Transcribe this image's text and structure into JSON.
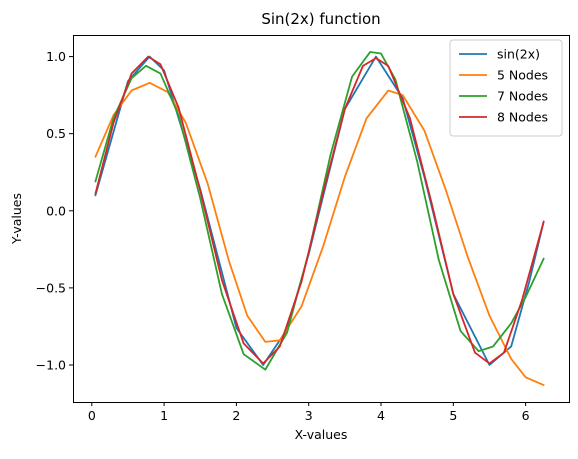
{
  "chart_data": {
    "type": "line",
    "title": "Sin(2x) function",
    "xlabel": "X-values",
    "ylabel": "Y-values",
    "xlim": [
      -0.26,
      6.6
    ],
    "ylim": [
      -1.24,
      1.14
    ],
    "xticks": [
      0,
      1,
      2,
      3,
      4,
      5,
      6
    ],
    "xtick_labels": [
      "0",
      "1",
      "2",
      "3",
      "4",
      "5",
      "6"
    ],
    "yticks": [
      -1.0,
      -0.5,
      0.0,
      0.5,
      1.0
    ],
    "ytick_labels": [
      "−1.0",
      "−0.5",
      "0.0",
      "0.5",
      "1.0"
    ],
    "grid": false,
    "legend": "top-right",
    "series": [
      {
        "name": "sin(2x)",
        "color": "#1f77b4",
        "x": [
          0.05,
          0.5,
          0.8,
          1.0,
          1.5,
          2.0,
          2.37,
          2.7,
          3.0,
          3.5,
          3.93,
          4.3,
          4.6,
          5.0,
          5.5,
          5.8,
          6.05,
          6.25
        ],
        "y": [
          0.1,
          0.84,
          1.0,
          0.91,
          0.14,
          -0.76,
          -1.0,
          -0.77,
          -0.28,
          0.66,
          1.0,
          0.73,
          0.22,
          -0.54,
          -1.0,
          -0.88,
          -0.46,
          -0.07
        ]
      },
      {
        "name": "5 Nodes",
        "color": "#ff7f0e",
        "x": [
          0.05,
          0.3,
          0.55,
          0.8,
          1.05,
          1.3,
          1.6,
          1.9,
          2.15,
          2.4,
          2.6,
          2.9,
          3.2,
          3.5,
          3.8,
          4.1,
          4.3,
          4.6,
          4.9,
          5.2,
          5.5,
          5.8,
          6.0,
          6.25
        ],
        "y": [
          0.35,
          0.62,
          0.78,
          0.83,
          0.77,
          0.57,
          0.18,
          -0.33,
          -0.68,
          -0.85,
          -0.84,
          -0.62,
          -0.23,
          0.22,
          0.6,
          0.78,
          0.75,
          0.52,
          0.13,
          -0.3,
          -0.68,
          -0.96,
          -1.08,
          -1.13
        ]
      },
      {
        "name": "7 Nodes",
        "color": "#2ca02c",
        "x": [
          0.05,
          0.3,
          0.55,
          0.75,
          0.95,
          1.2,
          1.5,
          1.8,
          2.1,
          2.4,
          2.7,
          3.0,
          3.3,
          3.6,
          3.85,
          4.0,
          4.2,
          4.5,
          4.8,
          5.1,
          5.35,
          5.55,
          5.8,
          6.0,
          6.25
        ],
        "y": [
          0.19,
          0.6,
          0.86,
          0.94,
          0.89,
          0.62,
          0.08,
          -0.54,
          -0.93,
          -1.03,
          -0.79,
          -0.27,
          0.36,
          0.87,
          1.03,
          1.02,
          0.85,
          0.32,
          -0.32,
          -0.78,
          -0.91,
          -0.88,
          -0.73,
          -0.56,
          -0.31
        ]
      },
      {
        "name": "8 Nodes",
        "color": "#d62728",
        "x": [
          0.05,
          0.3,
          0.55,
          0.78,
          0.95,
          1.2,
          1.5,
          1.8,
          2.1,
          2.37,
          2.6,
          2.9,
          3.2,
          3.5,
          3.75,
          3.93,
          4.1,
          4.4,
          4.7,
          5.0,
          5.3,
          5.5,
          5.7,
          5.95,
          6.25
        ],
        "y": [
          0.11,
          0.57,
          0.89,
          1.0,
          0.95,
          0.67,
          0.13,
          -0.45,
          -0.86,
          -0.99,
          -0.88,
          -0.46,
          0.12,
          0.66,
          0.94,
          0.99,
          0.94,
          0.6,
          0.05,
          -0.54,
          -0.92,
          -0.99,
          -0.92,
          -0.58,
          -0.07
        ]
      }
    ]
  }
}
